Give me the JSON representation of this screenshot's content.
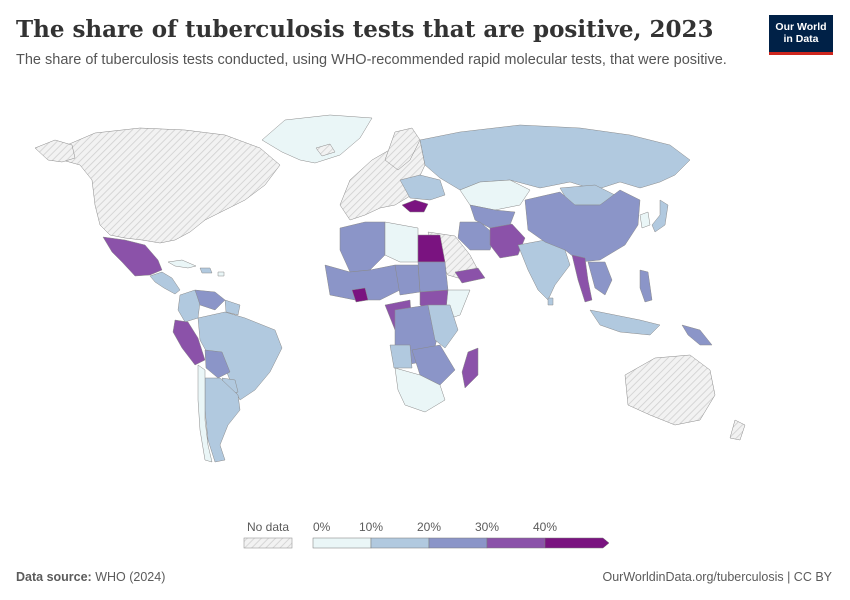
{
  "header": {
    "title": "The share of tuberculosis tests that are positive, 2023",
    "subtitle": "The share of tuberculosis tests conducted, using WHO-recommended rapid molecular tests, that were positive."
  },
  "logo": {
    "line1": "Our World",
    "line2": "in Data"
  },
  "legend": {
    "no_data_label": "No data",
    "ticks": [
      "0%",
      "10%",
      "20%",
      "30%",
      "40%"
    ],
    "bins": [
      {
        "from": 0,
        "to": 10,
        "color": "#eaf6f7"
      },
      {
        "from": 10,
        "to": 20,
        "color": "#b1c9df"
      },
      {
        "from": 20,
        "to": 30,
        "color": "#8b95c8"
      },
      {
        "from": 30,
        "to": 40,
        "color": "#8b52a9"
      },
      {
        "from": 40,
        "to": null,
        "color": "#7a1380"
      }
    ],
    "no_data_color": "#e8e8e8"
  },
  "footer": {
    "source_label": "Data source:",
    "source_value": "WHO (2024)",
    "url": "OurWorldinData.org/tuberculosis | CC BY"
  },
  "colors": {
    "bin_0_10": "#eaf6f7",
    "bin_10_20": "#b1c9df",
    "bin_20_30": "#8b95c8",
    "bin_30_40": "#8b52a9",
    "bin_40_plus": "#7a1380",
    "no_data": "#e8e8e8",
    "brand_navy": "#002147",
    "brand_red": "#ce261e"
  }
}
